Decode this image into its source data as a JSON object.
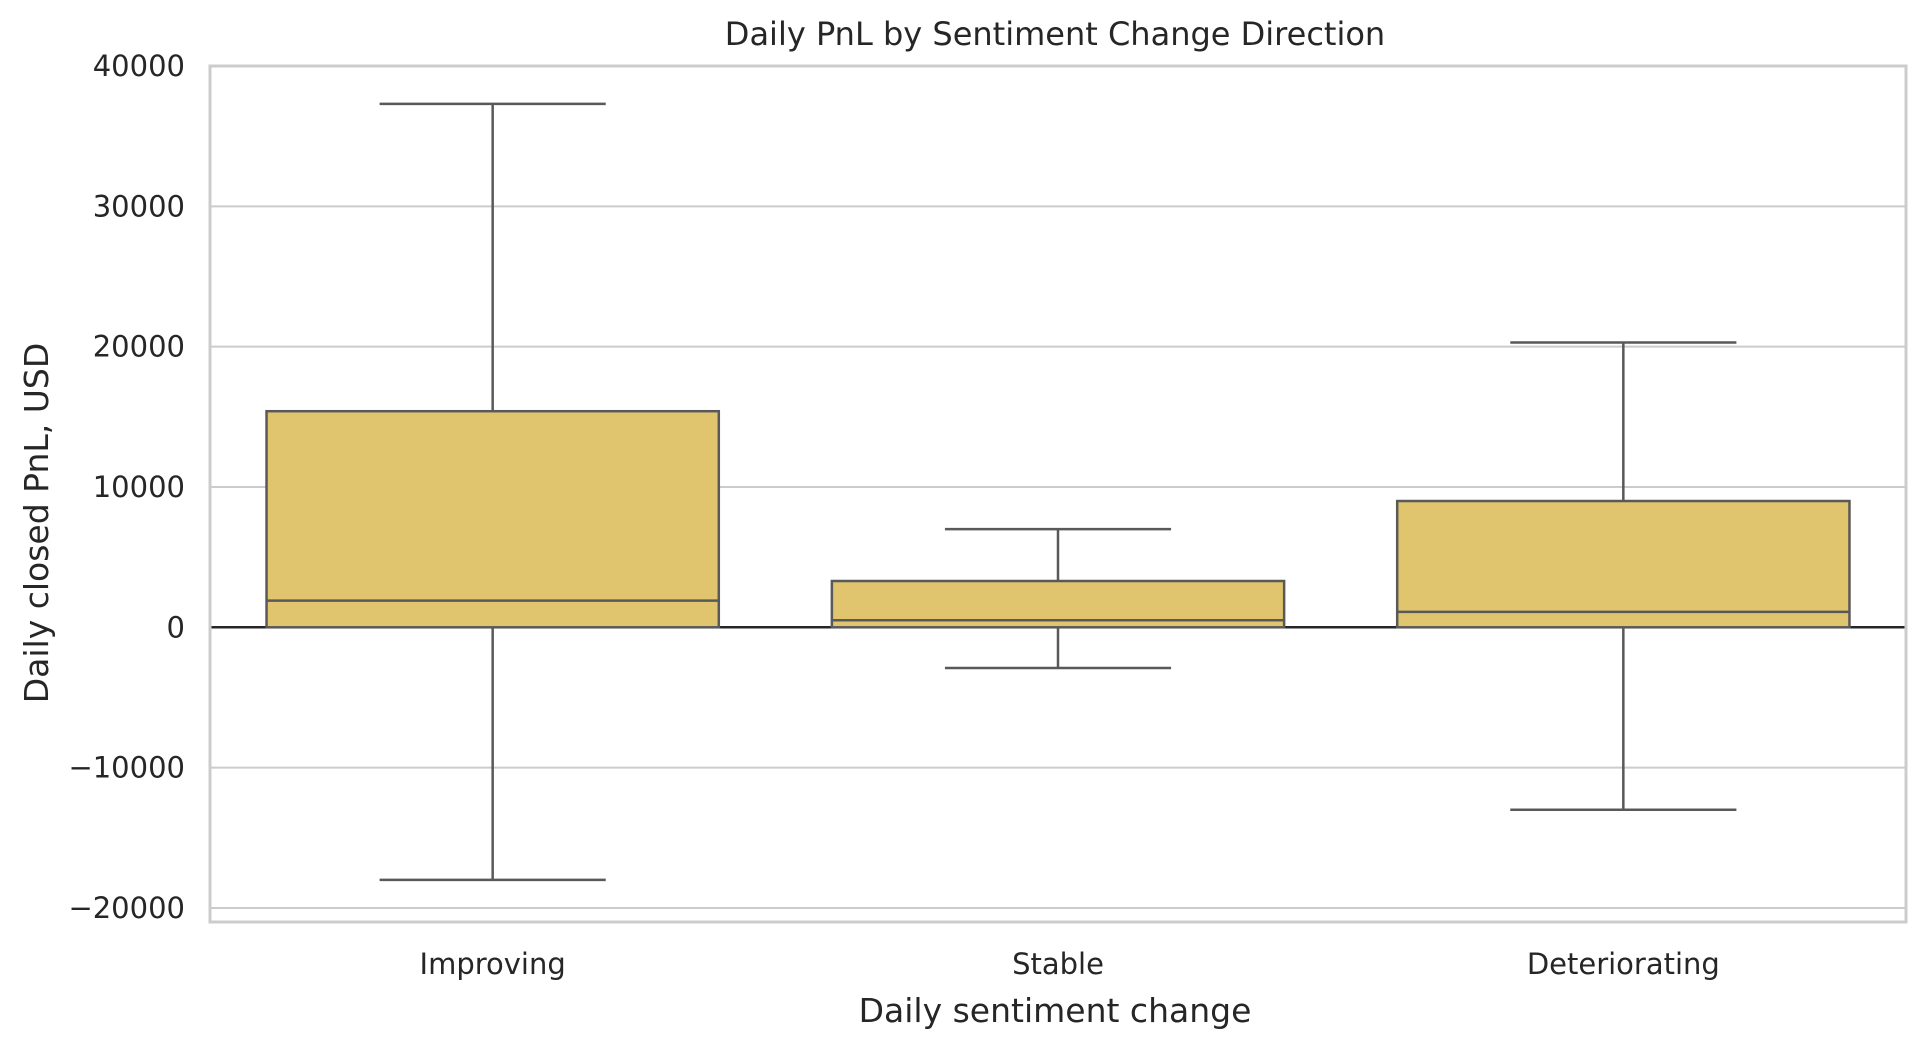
{
  "chart_data": {
    "type": "box",
    "title": "Daily PnL by Sentiment Change Direction",
    "xlabel": "Daily sentiment change",
    "ylabel": "Daily closed PnL, USD",
    "ylim": [
      -21000,
      40000
    ],
    "yticks": [
      {
        "value": -20000,
        "label": "−20000"
      },
      {
        "value": -10000,
        "label": "−10000"
      },
      {
        "value": 0,
        "label": "0"
      },
      {
        "value": 10000,
        "label": "10000"
      },
      {
        "value": 20000,
        "label": "20000"
      },
      {
        "value": 30000,
        "label": "30000"
      },
      {
        "value": 40000,
        "label": "40000"
      }
    ],
    "grid": true,
    "reference_line_y": 0,
    "box_color": "#e0c56e",
    "edge_color": "#595959",
    "categories": [
      "Improving",
      "Stable",
      "Deteriorating"
    ],
    "boxes": [
      {
        "category": "Improving",
        "whisker_low": -18000,
        "q1": 0,
        "median": 1900,
        "q3": 15400,
        "whisker_high": 37300
      },
      {
        "category": "Stable",
        "whisker_low": -2900,
        "q1": 0,
        "median": 500,
        "q3": 3300,
        "whisker_high": 7000
      },
      {
        "category": "Deteriorating",
        "whisker_low": -13000,
        "q1": 0,
        "median": 1100,
        "q3": 9000,
        "whisker_high": 20300
      }
    ]
  }
}
